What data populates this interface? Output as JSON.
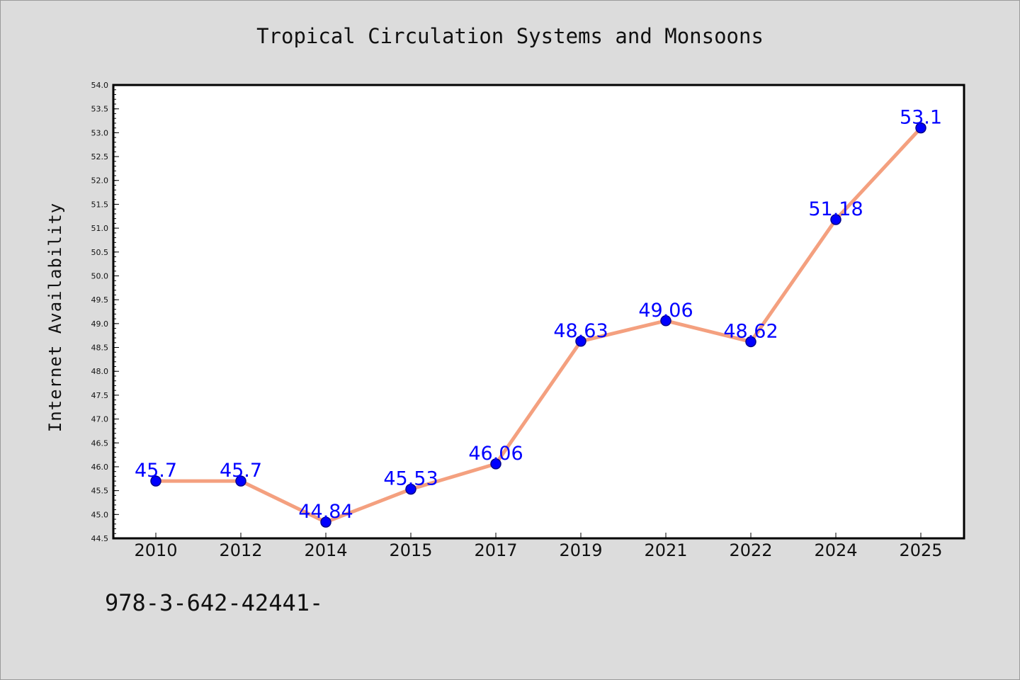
{
  "chart_data": {
    "type": "line",
    "title": "Tropical Circulation Systems and Monsoons",
    "xlabel": "",
    "ylabel": "Internet Availability",
    "categories": [
      "2010",
      "2012",
      "2014",
      "2015",
      "2017",
      "2019",
      "2021",
      "2022",
      "2024",
      "2025"
    ],
    "values": [
      45.7,
      45.7,
      44.84,
      45.53,
      46.06,
      48.63,
      49.06,
      48.62,
      51.18,
      53.1
    ],
    "data_labels": [
      "45.7",
      "45.7",
      "44.84",
      "45.53",
      "46.06",
      "48.63",
      "49.06",
      "48.62",
      "51.18",
      "53.1"
    ],
    "ylim": [
      44.5,
      54.0
    ],
    "yticks": [
      "44.5",
      "45.0",
      "45.5",
      "46.0",
      "46.5",
      "47.0",
      "47.5",
      "48.0",
      "48.5",
      "49.0",
      "49.5",
      "50.0",
      "50.5",
      "51.0",
      "51.5",
      "52.0",
      "52.5",
      "53.0",
      "53.5",
      "54.0"
    ],
    "grid": false,
    "legend": "none",
    "colors": {
      "line": "#f4a07f",
      "marker": "#0000ff",
      "marker_edge": "#00008b",
      "label": "#0000ff",
      "background": "#dcdcdc",
      "plot_background": "#ffffff"
    }
  },
  "footnote": "978-3-642-42441-"
}
